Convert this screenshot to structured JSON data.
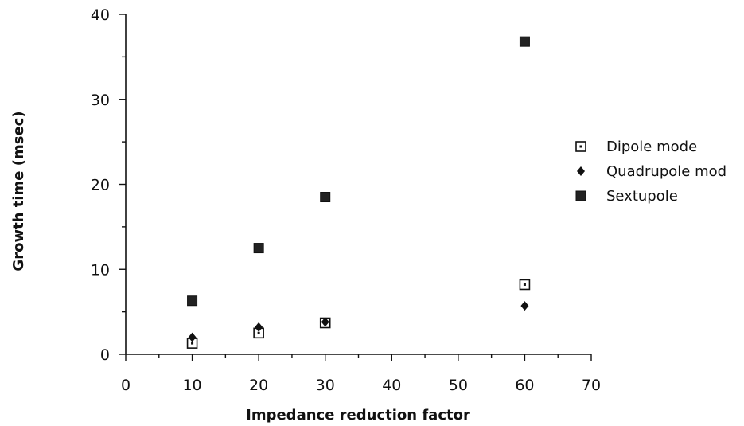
{
  "chart_data": {
    "type": "scatter",
    "xlabel": "Impedance reduction factor",
    "ylabel": "Growth time (msec)",
    "xlim": [
      0,
      70
    ],
    "ylim": [
      0,
      40
    ],
    "xticks": [
      "0",
      "10",
      "20",
      "30",
      "40",
      "50",
      "60",
      "70"
    ],
    "yticks": [
      "0",
      "10",
      "20",
      "30",
      "40"
    ],
    "grid": false,
    "legend_position": "right",
    "series": [
      {
        "name": "Dipole mode",
        "marker": "open-square",
        "color": "#111111",
        "x": [
          10,
          20,
          30,
          60
        ],
        "y": [
          1.3,
          2.5,
          3.7,
          8.2
        ]
      },
      {
        "name": "Quadrupole mod",
        "marker": "diamond",
        "color": "#111111",
        "x": [
          10,
          20,
          30,
          60
        ],
        "y": [
          2.0,
          3.2,
          3.8,
          5.7
        ]
      },
      {
        "name": "Sextupole",
        "marker": "filled-square",
        "color": "#111111",
        "x": [
          10,
          20,
          30,
          60
        ],
        "y": [
          6.3,
          12.5,
          18.5,
          36.8
        ]
      }
    ]
  }
}
